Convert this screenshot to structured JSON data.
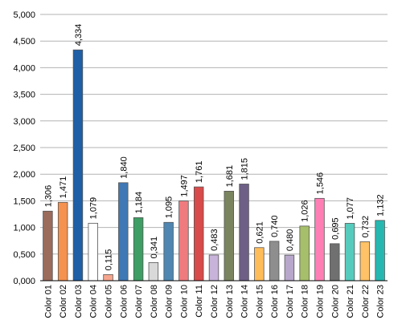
{
  "chart_data": {
    "type": "bar",
    "title": "",
    "xlabel": "",
    "ylabel": "",
    "ylim": [
      0,
      5
    ],
    "yticks": [
      0,
      0.5,
      1,
      1.5,
      2,
      2.5,
      3,
      3.5,
      4,
      4.5,
      5
    ],
    "ytick_labels": [
      "0,000",
      "0,500",
      "1,000",
      "1,500",
      "2,000",
      "2,500",
      "3,000",
      "3,500",
      "4,000",
      "4,500",
      "5,000"
    ],
    "grid": true,
    "legend": "none",
    "categories": [
      "Color 01",
      "Color 02",
      "Color 03",
      "Color 04",
      "Color 05",
      "Color 06",
      "Color 07",
      "Color 08",
      "Color 09",
      "Color 10",
      "Color 11",
      "Color 12",
      "Color 13",
      "Color 14",
      "Color 15",
      "Color 16",
      "Color 17",
      "Color 18",
      "Color 19",
      "Color 20",
      "Color 21",
      "Color 22",
      "Color 23"
    ],
    "values": [
      1.306,
      1.471,
      4.334,
      1.079,
      0.115,
      1.84,
      1.184,
      0.341,
      1.095,
      1.497,
      1.761,
      0.483,
      1.681,
      1.815,
      0.621,
      0.74,
      0.48,
      1.026,
      1.546,
      0.695,
      1.077,
      0.732,
      1.132
    ],
    "value_labels": [
      "1,306",
      "1,471",
      "4,334",
      "1,079",
      "0,115",
      "1,840",
      "1,184",
      "0,341",
      "1,095",
      "1,497",
      "1,761",
      "0,483",
      "1,681",
      "1,815",
      "0,621",
      "0,740",
      "0,480",
      "1,026",
      "1,546",
      "0,695",
      "1,077",
      "0,732",
      "1,132"
    ],
    "colors": [
      "#9b6b5b",
      "#f5924f",
      "#1f5fa6",
      "#ffffff",
      "#f6a58e",
      "#3f78b5",
      "#3e9e64",
      "#d9d9d9",
      "#4f87b2",
      "#ef7b7f",
      "#d94a4a",
      "#c8b3da",
      "#7a8560",
      "#6e5f87",
      "#ffbd5a",
      "#8e8e8e",
      "#b9a7cb",
      "#a6bf6a",
      "#ff7fb5",
      "#707070",
      "#55cbbd",
      "#ffc266",
      "#26b8b0"
    ]
  }
}
